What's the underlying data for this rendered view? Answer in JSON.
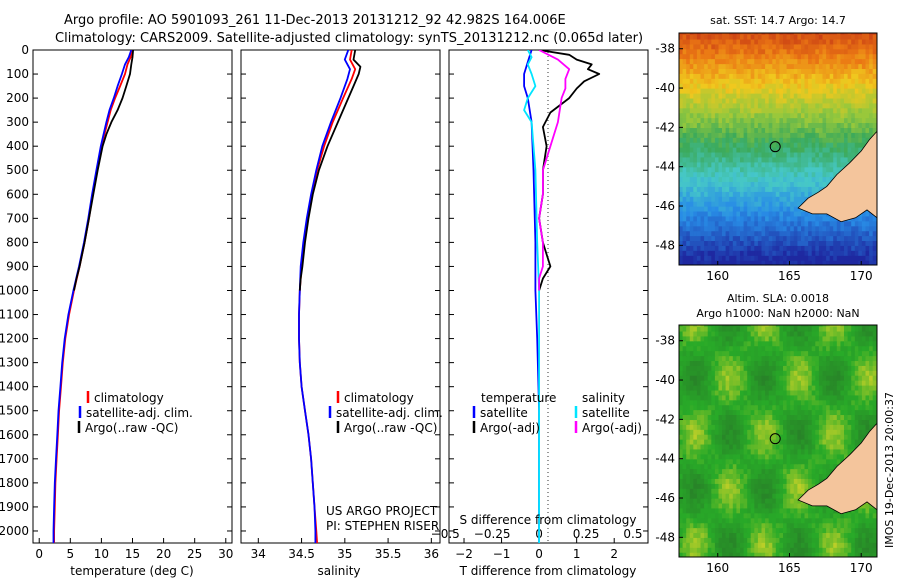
{
  "header": {
    "line1": "Argo profile: AO 5901093_261 11-Dec-2013 20131212_92 42.982S 164.006E",
    "line2": "Climatology: CARS2009. Satellite-adjusted climatology: synTS_20131212.nc (0.065d later)"
  },
  "colors": {
    "climatology": "#ff0000",
    "satellite": "#0000ff",
    "argo": "#000000",
    "sal_satellite": "#00e5ff",
    "sal_argo": "#ff00ff",
    "land": "#f4c59c"
  },
  "chart_data": [
    {
      "id": "temperature",
      "type": "line",
      "xlabel": "temperature (deg C)",
      "ylabel": "",
      "xlim": [
        -1,
        31
      ],
      "ylim": [
        0,
        2050
      ],
      "y_inverted": true,
      "x_ticks": [
        0,
        5,
        10,
        15,
        20,
        25,
        30
      ],
      "y_ticks": [
        0,
        100,
        200,
        300,
        400,
        500,
        600,
        700,
        800,
        900,
        1000,
        1100,
        1200,
        1300,
        1400,
        1500,
        1600,
        1700,
        1800,
        1900,
        2000
      ],
      "legend": [
        "climatology",
        "satellite-adj. clim.",
        "Argo(..raw -QC)"
      ],
      "series": [
        {
          "name": "climatology",
          "color": "#ff0000",
          "depth": [
            0,
            30,
            60,
            100,
            150,
            200,
            250,
            300,
            400,
            500,
            600,
            700,
            800,
            900,
            1000,
            1100,
            1200,
            1300,
            1400,
            1500,
            1600,
            1700,
            1800,
            1900,
            2000,
            2050
          ],
          "values": [
            15.0,
            14.7,
            14.2,
            13.8,
            13.0,
            12.2,
            11.5,
            11.0,
            10.0,
            9.3,
            8.6,
            8.0,
            7.3,
            6.5,
            5.6,
            4.8,
            4.2,
            3.8,
            3.5,
            3.2,
            3.0,
            2.8,
            2.6,
            2.5,
            2.4,
            2.4
          ]
        },
        {
          "name": "satellite-adj. clim.",
          "color": "#0000ff",
          "depth": [
            0,
            30,
            60,
            100,
            150,
            200,
            250,
            300,
            400,
            500,
            600,
            700,
            800,
            900,
            1000,
            1100,
            1200,
            1300,
            1400,
            1500,
            1600,
            1700,
            1800,
            1900,
            2000,
            2050
          ],
          "values": [
            14.8,
            14.4,
            13.8,
            13.3,
            12.6,
            12.0,
            11.3,
            10.8,
            9.9,
            9.2,
            8.5,
            7.9,
            7.2,
            6.4,
            5.5,
            4.7,
            4.1,
            3.7,
            3.4,
            3.1,
            2.9,
            2.7,
            2.5,
            2.4,
            2.3,
            2.3
          ]
        },
        {
          "name": "Argo(..raw -QC)",
          "color": "#000000",
          "depth": [
            0,
            30,
            60,
            100,
            150,
            200,
            250,
            300,
            350,
            400,
            500,
            600,
            700,
            800,
            900,
            950,
            1000
          ],
          "values": [
            15.1,
            15.0,
            14.8,
            14.6,
            14.0,
            13.4,
            12.6,
            11.6,
            10.8,
            10.2,
            9.4,
            8.7,
            8.0,
            7.3,
            6.5,
            6.0,
            5.6
          ]
        }
      ]
    },
    {
      "id": "salinity",
      "type": "line",
      "xlabel": "salinity",
      "ylabel": "",
      "xlim": [
        33.8,
        36.1
      ],
      "ylim": [
        0,
        2050
      ],
      "y_inverted": true,
      "x_ticks": [
        34,
        34.5,
        35,
        35.5,
        36
      ],
      "legend": [
        "climatology",
        "satellite-adj. clim.",
        "Argo(..raw -QC)"
      ],
      "annotations": [
        "US ARGO PROJECT",
        "PI: STEPHEN RISER"
      ],
      "series": [
        {
          "name": "climatology",
          "color": "#ff0000",
          "depth": [
            0,
            40,
            80,
            120,
            200,
            300,
            400,
            500,
            600,
            700,
            800,
            900,
            1000,
            1100,
            1200,
            1300,
            1400,
            1500,
            1600,
            1700,
            1800,
            1900,
            2000,
            2050
          ],
          "values": [
            35.08,
            35.06,
            35.12,
            35.08,
            34.98,
            34.86,
            34.76,
            34.68,
            34.62,
            34.57,
            34.53,
            34.5,
            34.48,
            34.47,
            34.47,
            34.48,
            34.5,
            34.54,
            34.58,
            34.61,
            34.63,
            34.65,
            34.67,
            34.68
          ]
        },
        {
          "name": "satellite-adj. clim.",
          "color": "#0000ff",
          "depth": [
            0,
            40,
            80,
            120,
            200,
            300,
            400,
            500,
            600,
            700,
            800,
            900,
            1000,
            1100,
            1200,
            1300,
            1400,
            1500,
            1600,
            1700,
            1800,
            1900,
            2000,
            2050
          ],
          "values": [
            35.04,
            35.0,
            35.06,
            35.03,
            34.95,
            34.84,
            34.74,
            34.67,
            34.61,
            34.56,
            34.52,
            34.49,
            34.48,
            34.47,
            34.47,
            34.48,
            34.5,
            34.54,
            34.58,
            34.61,
            34.63,
            34.65,
            34.66,
            34.66
          ]
        },
        {
          "name": "Argo(..raw -QC)",
          "color": "#000000",
          "depth": [
            0,
            40,
            70,
            100,
            150,
            200,
            300,
            400,
            500,
            600,
            700,
            800,
            900,
            950,
            1000
          ],
          "values": [
            35.12,
            35.1,
            35.18,
            35.16,
            35.1,
            35.04,
            34.92,
            34.8,
            34.7,
            34.63,
            34.58,
            34.54,
            34.51,
            34.49,
            34.48
          ]
        }
      ]
    },
    {
      "id": "differences",
      "type": "line",
      "xlabel": "T difference from climatology",
      "top_xlabel": "S difference from climatology",
      "xlim": [
        -2.4,
        2.9
      ],
      "ylim": [
        0,
        2050
      ],
      "y_inverted": true,
      "x_ticks": [
        -2,
        -1,
        0,
        1,
        2
      ],
      "top_x_ticks": [
        -0.5,
        -0.25,
        0,
        0.25,
        0.5
      ],
      "top_x_tick_labels": [
        "−0.5",
        "−0.25",
        "0",
        "0.25",
        "0.5"
      ],
      "x_tick_labels": [
        "−2",
        "−1",
        "0",
        "1",
        "2"
      ],
      "legend_titles": [
        "temperature",
        "salinity"
      ],
      "legend": [
        "satellite",
        "Argo(-adj)",
        "satellite",
        "Argo(-adj)"
      ],
      "series": [
        {
          "name": "satellite",
          "group": "temperature",
          "color": "#0000ff",
          "depth": [
            0,
            50,
            100,
            150,
            200,
            300,
            500,
            800,
            1000,
            1200,
            1500,
            2000,
            2050
          ],
          "values": [
            -0.2,
            -0.3,
            -0.4,
            -0.4,
            -0.3,
            -0.2,
            -0.15,
            -0.1,
            -0.1,
            -0.05,
            0,
            0,
            0
          ]
        },
        {
          "name": "Argo(-adj)",
          "group": "temperature",
          "color": "#000000",
          "depth": [
            0,
            20,
            40,
            60,
            80,
            100,
            130,
            160,
            200,
            260,
            320,
            400,
            500,
            600,
            700,
            800,
            850,
            900,
            950,
            1000
          ],
          "values": [
            0,
            0.8,
            1.0,
            1.4,
            1.3,
            1.6,
            1.2,
            1.0,
            0.8,
            0.3,
            0.1,
            0.2,
            0.1,
            0.1,
            0.0,
            0.1,
            0.2,
            0.3,
            0.1,
            0.0
          ]
        },
        {
          "name": "satellite",
          "group": "salinity",
          "color": "#00e5ff",
          "depth": [
            0,
            30,
            60,
            100,
            150,
            200,
            250,
            300,
            500,
            800,
            1000,
            1500,
            2000,
            2050
          ],
          "values": [
            -0.3,
            -0.2,
            -0.3,
            -0.2,
            -0.1,
            -0.3,
            -0.4,
            -0.2,
            -0.1,
            -0.05,
            0,
            0,
            0,
            0
          ]
        },
        {
          "name": "Argo(-adj)",
          "group": "salinity",
          "color": "#ff00ff",
          "depth": [
            0,
            40,
            80,
            120,
            160,
            200,
            300,
            400,
            500,
            600,
            700,
            800,
            900,
            950,
            1000
          ],
          "values": [
            0,
            0.5,
            0.8,
            0.7,
            0.7,
            0.6,
            0.5,
            0.3,
            0.1,
            0.1,
            0.0,
            0.1,
            0.1,
            0.0,
            0.0
          ]
        }
      ]
    },
    {
      "id": "sst_map",
      "type": "heatmap",
      "title": "sat. SST: 14.7 Argo: 14.7",
      "x_ticks": [
        160,
        165,
        170
      ],
      "y_ticks": [
        -38,
        -40,
        -42,
        -44,
        -46,
        -48
      ],
      "y_tick_labels": [
        "-38",
        "-40",
        "-42",
        "-44",
        "-46",
        "-48"
      ],
      "xlim": [
        157.3,
        171.1
      ],
      "ylim": [
        -49.0,
        -37.2
      ],
      "profile_location": {
        "lon": 164.006,
        "lat": -42.982
      }
    },
    {
      "id": "sla_map",
      "type": "heatmap",
      "title": "Altim. SLA: 0.0018",
      "subtitle": "Argo h1000: NaN h2000: NaN",
      "x_ticks": [
        160,
        165,
        170
      ],
      "y_ticks": [
        -38,
        -40,
        -42,
        -44,
        -46,
        -48
      ],
      "y_tick_labels": [
        "-38",
        "-40",
        "-42",
        "-44",
        "-46",
        "-48"
      ],
      "xlim": [
        157.3,
        171.1
      ],
      "ylim": [
        -49.0,
        -37.2
      ],
      "profile_location": {
        "lon": 164.006,
        "lat": -42.982
      }
    }
  ],
  "watermark": "IMOS 19-Dec-2013 20:00:37"
}
